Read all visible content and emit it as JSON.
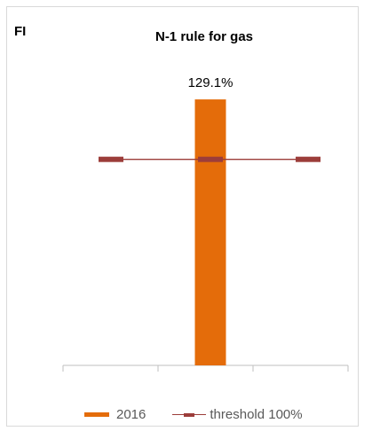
{
  "header": {
    "country": "FI"
  },
  "chart_data": {
    "type": "bar",
    "title": "N-1 rule for gas",
    "categories": [
      "2016"
    ],
    "values": [
      129.1
    ],
    "data_labels": [
      "129.1%"
    ],
    "threshold": {
      "name": "threshold 100%",
      "value": 100
    },
    "series": [
      {
        "name": "2016",
        "values": [
          129.1
        ]
      }
    ],
    "ylim": [
      0,
      130
    ],
    "grid": false,
    "legend": "bottom",
    "colors": {
      "bar": "#e46c0a",
      "threshold": "#9c3d3a",
      "axis": "#bfbfbf"
    }
  }
}
